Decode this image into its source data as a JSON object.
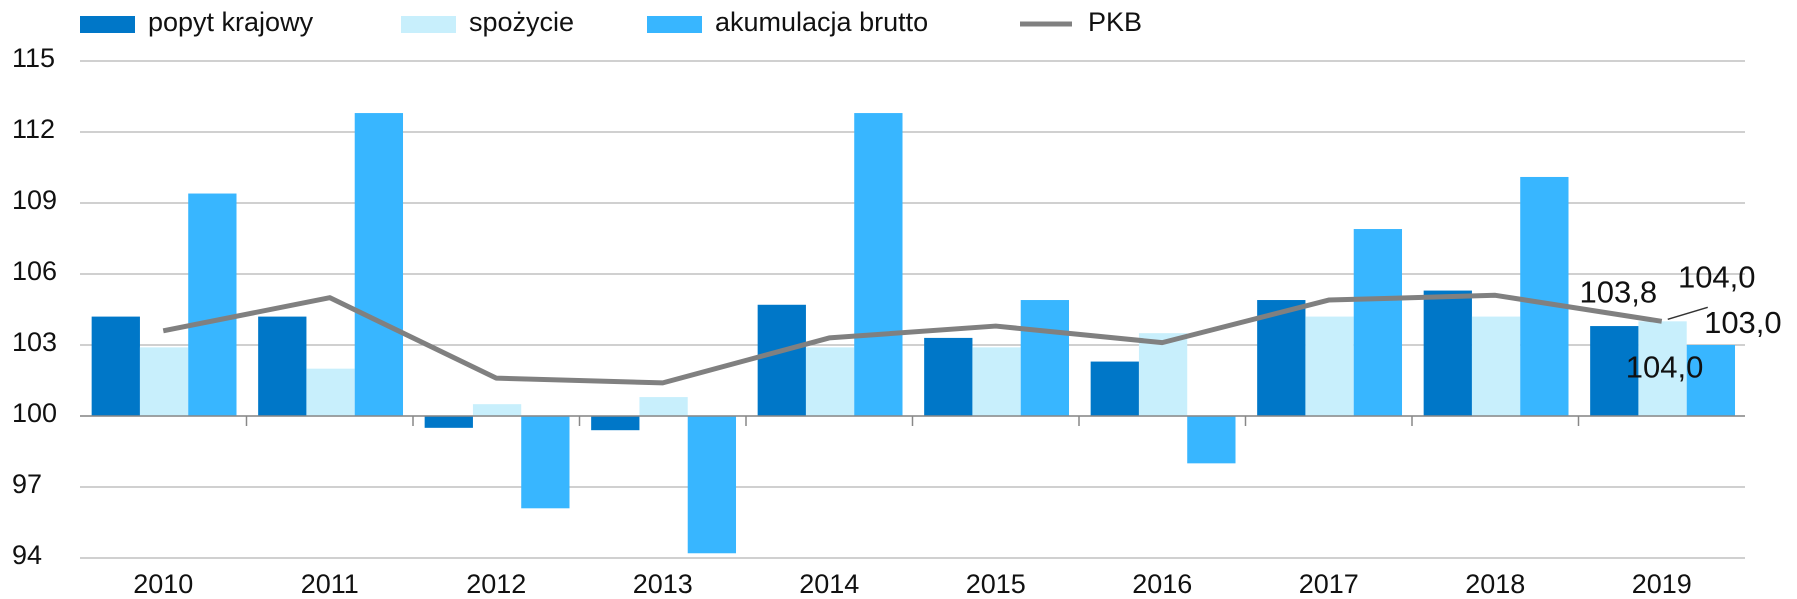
{
  "chart_data": {
    "type": "bar",
    "categories": [
      "2010",
      "2011",
      "2012",
      "2013",
      "2014",
      "2015",
      "2016",
      "2017",
      "2018",
      "2019"
    ],
    "series": [
      {
        "name": "popyt krajowy",
        "type": "bar",
        "color": "#0077c8",
        "values": [
          104.2,
          104.2,
          99.5,
          99.4,
          104.7,
          103.3,
          102.3,
          104.9,
          105.3,
          103.8
        ],
        "value_labels": [
          null,
          null,
          null,
          null,
          null,
          null,
          null,
          null,
          null,
          "103,8"
        ]
      },
      {
        "name": "spożycie",
        "type": "bar",
        "color": "#c8effc",
        "values": [
          102.9,
          102.0,
          100.5,
          100.8,
          102.9,
          102.9,
          103.5,
          104.2,
          104.2,
          104.0
        ],
        "value_labels": [
          null,
          null,
          null,
          null,
          null,
          null,
          null,
          null,
          null,
          "104,0"
        ]
      },
      {
        "name": "akumulacja brutto",
        "type": "bar",
        "color": "#38b6ff",
        "values": [
          109.4,
          112.8,
          96.1,
          94.2,
          112.8,
          104.9,
          98.0,
          107.9,
          110.1,
          103.0
        ],
        "value_labels": [
          null,
          null,
          null,
          null,
          null,
          null,
          null,
          null,
          null,
          "103,0"
        ]
      },
      {
        "name": "PKB",
        "type": "line",
        "color": "#808080",
        "values": [
          103.6,
          105.0,
          101.6,
          101.4,
          103.3,
          103.8,
          103.1,
          104.9,
          105.1,
          104.0
        ],
        "value_labels": [
          null,
          null,
          null,
          null,
          null,
          null,
          null,
          null,
          null,
          "104,0"
        ]
      }
    ],
    "bar_base": 100,
    "ylim": [
      94,
      115
    ],
    "yticks": [
      94,
      97,
      100,
      103,
      106,
      109,
      112,
      115
    ],
    "grid": true,
    "legend": "top"
  }
}
